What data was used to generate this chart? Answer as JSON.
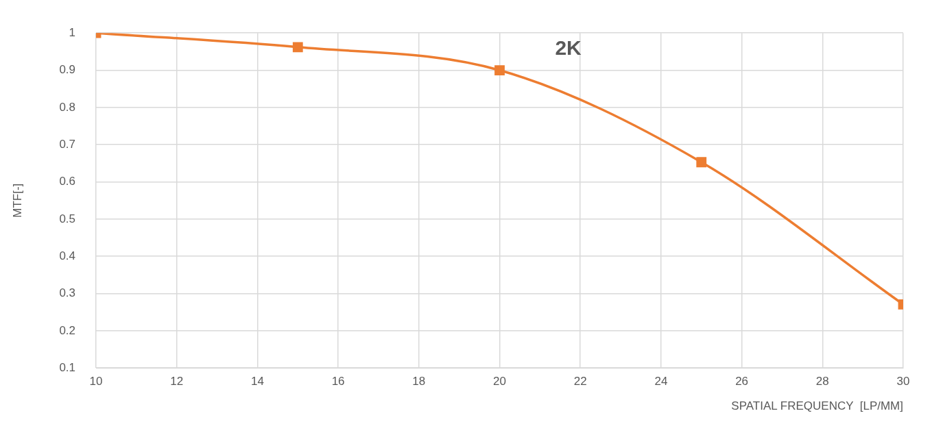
{
  "chart_data": {
    "type": "line",
    "title": "2K",
    "xlabel": "SPATIAL FREQUENCY  [LP/MM]",
    "ylabel": "MTF[-]",
    "x": [
      10,
      15,
      20,
      25,
      30
    ],
    "series": [
      {
        "color": "#ed7d31",
        "values": [
          1.0,
          0.962,
          0.9,
          0.653,
          0.271
        ]
      }
    ],
    "xlim": [
      10,
      30
    ],
    "xticks": [
      10,
      12,
      14,
      16,
      18,
      20,
      22,
      24,
      26,
      28,
      30
    ],
    "ylim": [
      0.1,
      1
    ],
    "yticks": [
      0.1,
      0.2,
      0.3,
      0.4,
      0.5,
      0.6,
      0.7,
      0.8,
      0.9,
      1
    ],
    "grid": true,
    "legend": false,
    "marker": "square",
    "line_style": "solid"
  }
}
